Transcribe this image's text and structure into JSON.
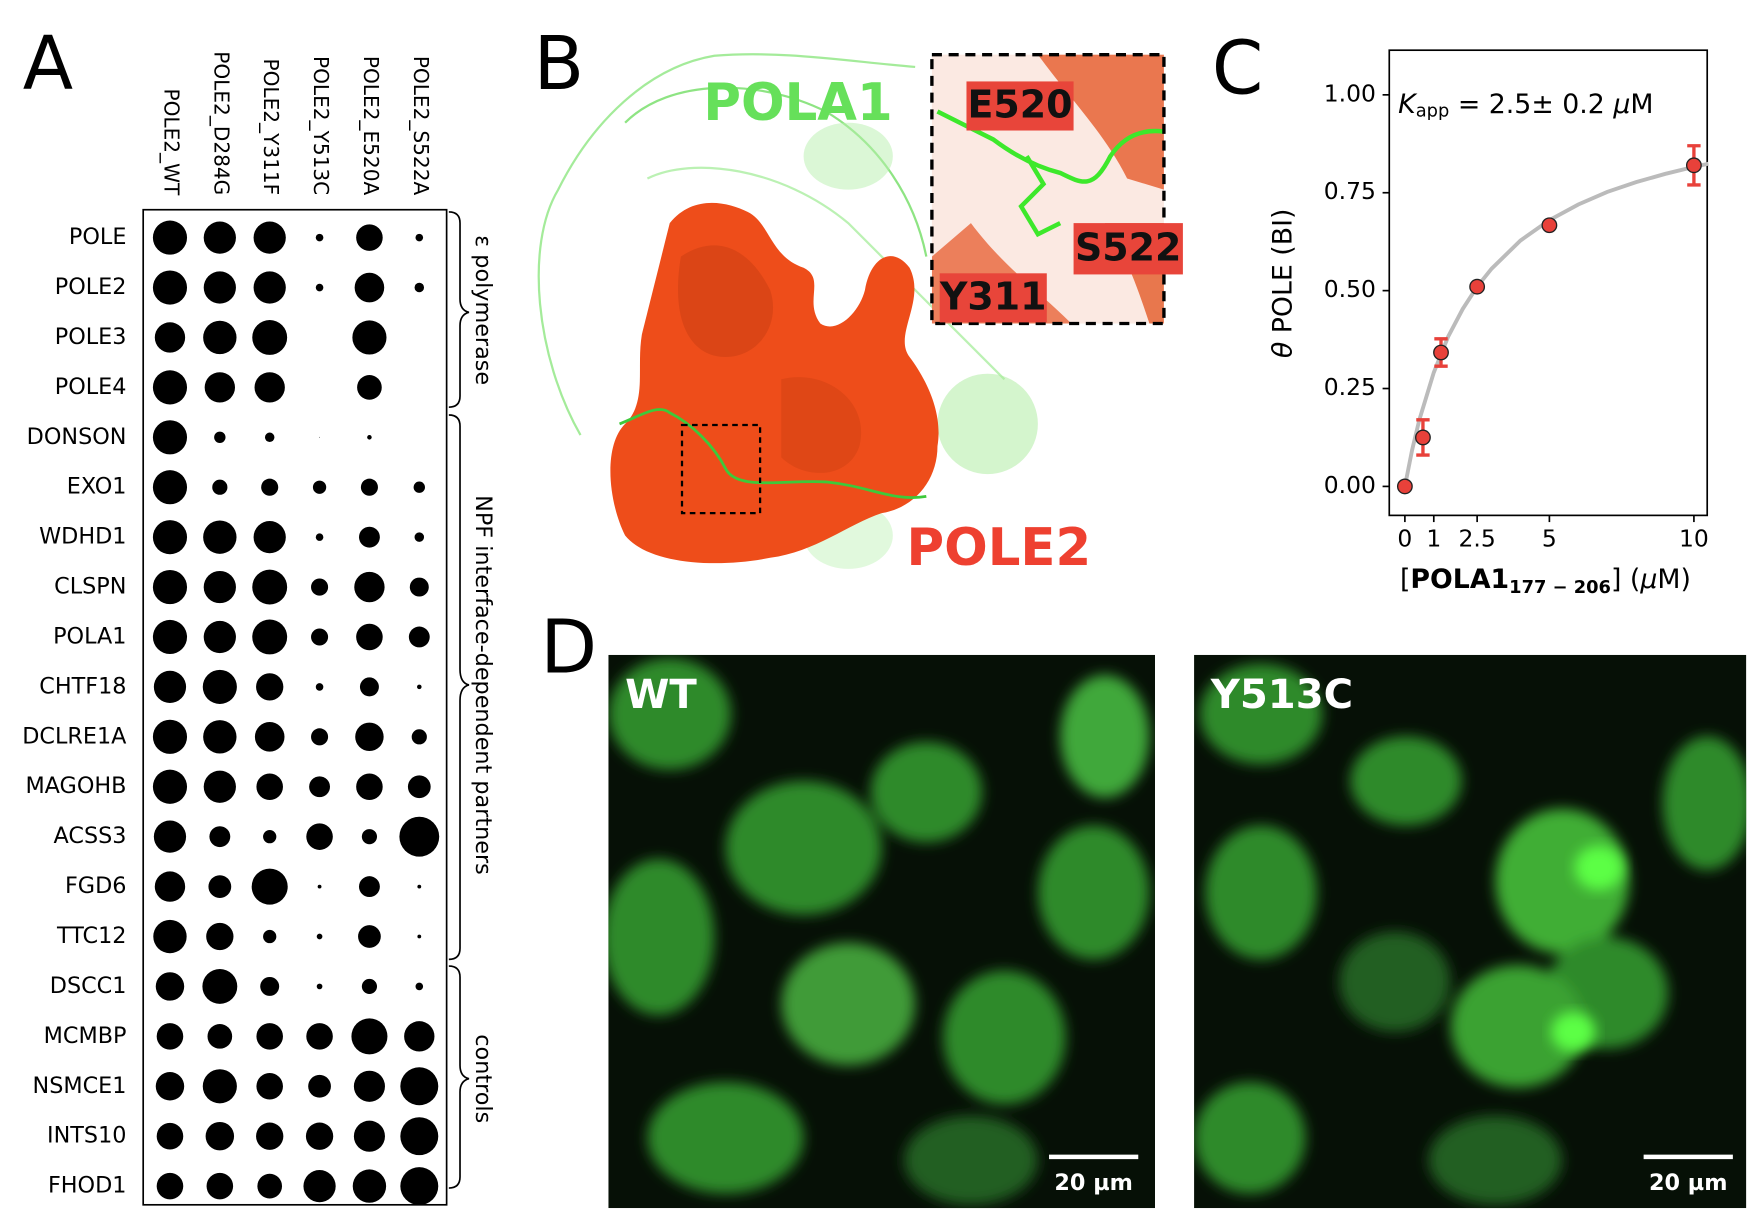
{
  "panels": {
    "a": "A",
    "b": "B",
    "c": "C",
    "d": "D"
  },
  "chart_data": [
    {
      "type": "dot",
      "categories": [
        "POLE",
        "POLE2",
        "POLE3",
        "POLE4",
        "DONSON",
        "EXO1",
        "WDHD1",
        "CLSPN",
        "POLA1",
        "CHTF18",
        "DCLRE1A",
        "MAGOHB",
        "ACSS3",
        "FGD6",
        "TTC12",
        "DSCC1",
        "MCMBP",
        "NSMCE1",
        "INTS10",
        "FHOD1"
      ],
      "series": [
        {
          "name": "POLE2_WT",
          "color": "#000000",
          "values": [
            0.9,
            0.9,
            0.8,
            0.9,
            0.9,
            0.9,
            0.9,
            0.9,
            0.9,
            0.85,
            0.9,
            0.9,
            0.85,
            0.8,
            0.88,
            0.75,
            0.7,
            0.75,
            0.7,
            0.7
          ]
        },
        {
          "name": "POLE2_D284G",
          "color": "#000000",
          "values": [
            0.85,
            0.85,
            0.88,
            0.8,
            0.3,
            0.4,
            0.88,
            0.85,
            0.85,
            0.9,
            0.88,
            0.85,
            0.55,
            0.6,
            0.72,
            0.92,
            0.65,
            0.9,
            0.75,
            0.7
          ]
        },
        {
          "name": "POLE2_Y311F",
          "color": "#000000",
          "values": [
            0.85,
            0.85,
            0.92,
            0.8,
            0.25,
            0.45,
            0.85,
            0.92,
            0.92,
            0.72,
            0.78,
            0.7,
            0.35,
            0.95,
            0.35,
            0.5,
            0.7,
            0.7,
            0.72,
            0.65
          ]
        },
        {
          "name": "POLE2_Y513C",
          "color": "#000000",
          "values": [
            0.2,
            0.2,
            0,
            0,
            0.02,
            0.35,
            0.2,
            0.45,
            0.45,
            0.2,
            0.45,
            0.55,
            0.7,
            0.1,
            0.15,
            0.15,
            0.7,
            0.6,
            0.72,
            0.85
          ]
        },
        {
          "name": "POLE2_E520A",
          "color": "#000000",
          "values": [
            0.7,
            0.78,
            0.9,
            0.65,
            0.12,
            0.45,
            0.55,
            0.8,
            0.7,
            0.5,
            0.75,
            0.7,
            0.4,
            0.55,
            0.6,
            0.4,
            0.95,
            0.82,
            0.82,
            0.88
          ]
        },
        {
          "name": "POLE2_S522A",
          "color": "#000000",
          "values": [
            0.2,
            0.25,
            0,
            0,
            0,
            0.3,
            0.25,
            0.5,
            0.55,
            0.12,
            0.4,
            0.6,
            1.05,
            0.1,
            0.1,
            0.2,
            0.8,
            1.0,
            1.0,
            1.0
          ]
        }
      ],
      "groups": [
        "ε polymerase",
        "NPF interface-dependent partners",
        "controls"
      ]
    },
    {
      "type": "scatter",
      "annotation": {
        "k": "K",
        "sub": "app",
        "rest": " = 2.5± 0.2 ",
        "mu": "μ",
        "unit": "M"
      },
      "ylabel": {
        "theta": "θ",
        "rest": " POLE  (BI)"
      },
      "xlabel": {
        "open": "[",
        "name": "POLA1",
        "sub": "177 − 206",
        "close": "] (",
        "mu": "μ",
        "unit": "M)"
      },
      "x": [
        0,
        0.625,
        1.25,
        2.5,
        5,
        10
      ],
      "series": [
        {
          "color": "#e8413a",
          "values": [
            0,
            0.125,
            0.342,
            0.51,
            0.667,
            0.82
          ],
          "errors": [
            0,
            0.045,
            0.035,
            0.005,
            0.005,
            0.05
          ]
        }
      ],
      "fit": {
        "color": "#bbbbbb",
        "x": [
          0,
          0.25,
          0.5,
          1,
          1.5,
          2,
          2.5,
          3,
          4,
          5,
          6,
          7,
          8,
          9,
          10,
          10.5
        ],
        "y": [
          0,
          0.093,
          0.17,
          0.291,
          0.383,
          0.453,
          0.51,
          0.556,
          0.628,
          0.68,
          0.72,
          0.752,
          0.777,
          0.798,
          0.816,
          0.824
        ]
      },
      "xlim": [
        -0.54,
        10.46
      ],
      "ylim": [
        -0.074,
        1.114
      ],
      "xticks": [
        0,
        1,
        2.5,
        5,
        10
      ],
      "yticks": [
        {
          "value": 0,
          "label": "0.00"
        },
        {
          "value": 0.25,
          "label": "0.25"
        },
        {
          "value": 0.5,
          "label": "0.50"
        },
        {
          "value": 0.75,
          "label": "0.75"
        },
        {
          "value": 1,
          "label": "1.00"
        }
      ]
    }
  ],
  "structure": {
    "pola1": "POLA1",
    "pole2": "POLE2",
    "e520": "E520",
    "s522": "S522",
    "y311": "Y311"
  },
  "micrographs": [
    {
      "label": "WT",
      "scale_bar": "20 µm"
    },
    {
      "label": "Y513C",
      "scale_bar": "20 µm"
    }
  ]
}
